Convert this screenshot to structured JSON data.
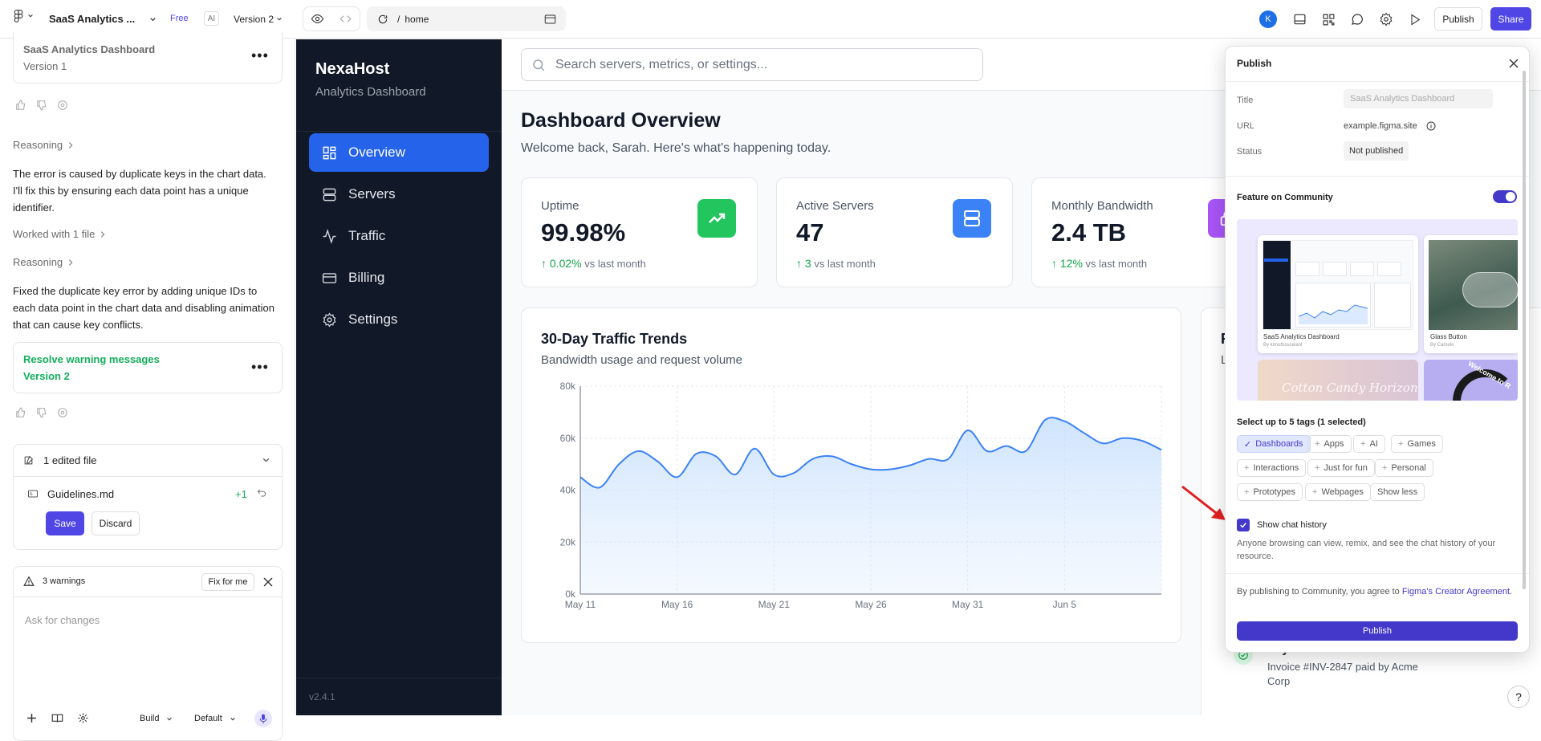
{
  "topbar": {
    "project_name": "SaaS Analytics ...",
    "plan_badge": "Free",
    "ai_badge": "AI",
    "version": "Version 2",
    "url_path": "/",
    "url_page": "home",
    "avatar_letter": "K",
    "publish_label": "Publish",
    "share_label": "Share"
  },
  "chat": {
    "version_card": {
      "title": "SaaS Analytics Dashboard",
      "version": "Version 1"
    },
    "reasoning_1": "Reasoning",
    "message_1": "The error is caused by duplicate keys in the chart data. I'll fix this by ensuring each data point has a unique identifier.",
    "worked_with": "Worked with 1 file",
    "reasoning_2": "Reasoning",
    "message_2": "Fixed the duplicate key error by adding unique IDs to each data point in the chart data and disabling animation that can cause key conflicts.",
    "version_card_2": {
      "title": "Resolve warning messages",
      "version": "Version 2"
    },
    "edited_files": {
      "title": "1 edited file",
      "file_name": "Guidelines.md",
      "diff": "+1",
      "save_label": "Save",
      "discard_label": "Discard"
    },
    "warnings": {
      "count_label": "3 warnings",
      "fix_label": "Fix for me"
    },
    "input_placeholder": "Ask for changes",
    "mode_select": "Build",
    "model_select": "Default"
  },
  "app": {
    "brand": "NexaHost",
    "brand_sub": "Analytics Dashboard",
    "nav": [
      {
        "label": "Overview",
        "icon": "grid-icon"
      },
      {
        "label": "Servers",
        "icon": "server-icon"
      },
      {
        "label": "Traffic",
        "icon": "activity-icon"
      },
      {
        "label": "Billing",
        "icon": "credit-card-icon"
      },
      {
        "label": "Settings",
        "icon": "gear-icon"
      }
    ],
    "version": "v2.4.1",
    "search_placeholder": "Search servers, metrics, or settings...",
    "page_title": "Dashboard Overview",
    "welcome": "Welcome back, Sarah. Here's what's happening today.",
    "stats": [
      {
        "label": "Uptime",
        "value": "99.98%",
        "change": "0.02%",
        "suffix": "vs last month",
        "color": "#22c55e"
      },
      {
        "label": "Active Servers",
        "value": "47",
        "change": "3",
        "suffix": "vs last month",
        "color": "#3b82f6"
      },
      {
        "label": "Monthly Bandwidth",
        "value": "2.4 TB",
        "change": "12%",
        "suffix": "vs last month",
        "color": "#a855f7"
      }
    ],
    "side_card": {
      "title_initial": "R",
      "subtitle_initial": "L"
    },
    "activity": {
      "title": "Payment received",
      "desc": "Invoice #INV-2847 paid by Acme Corp"
    }
  },
  "chart_data": {
    "type": "area",
    "title": "30-Day Traffic Trends",
    "subtitle": "Bandwidth usage and request volume",
    "xlabel": "",
    "ylabel": "",
    "ylim": [
      0,
      80000
    ],
    "y_ticks": [
      "0k",
      "20k",
      "40k",
      "60k",
      "80k"
    ],
    "x_ticks": [
      "May 11",
      "May 16",
      "May 21",
      "May 26",
      "May 31",
      "Jun 5"
    ],
    "grid": true,
    "series": [
      {
        "values": [
          45000,
          41000,
          50000,
          55000,
          51000,
          45000,
          54000,
          53000,
          46000,
          56000,
          46000,
          46500,
          52000,
          53000,
          50000,
          48000,
          48000,
          49500,
          52000,
          52000,
          63000,
          55000,
          57000,
          55000,
          67000,
          66500,
          62000,
          58000,
          60000,
          59000,
          55500
        ]
      }
    ]
  },
  "publish": {
    "header": "Publish",
    "title_label": "Title",
    "title_value": "SaaS Analytics Dashboard",
    "url_label": "URL",
    "url_value": "example.figma.site",
    "status_label": "Status",
    "status_value": "Not published",
    "feature_label": "Feature on Community",
    "preview_card_1": "SaaS Analytics Dashboard",
    "preview_card_1_by": "By kimothoscelanl",
    "preview_card_2": "Glass Button",
    "preview_card_2_by": "By Camelo",
    "preview_card_3": "Cotton Candy Horizon",
    "preview_card_4": "Welcome to R",
    "tags_label": "Select up to 5 tags (1 selected)",
    "tags": [
      {
        "label": "Dashboards",
        "selected": true
      },
      {
        "label": "Apps",
        "selected": false
      },
      {
        "label": "AI",
        "selected": false
      },
      {
        "label": "Games",
        "selected": false
      },
      {
        "label": "Interactions",
        "selected": false
      },
      {
        "label": "Just for fun",
        "selected": false
      },
      {
        "label": "Personal",
        "selected": false
      },
      {
        "label": "Prototypes",
        "selected": false
      },
      {
        "label": "Webpages",
        "selected": false
      },
      {
        "label": "Show less",
        "selected": false
      }
    ],
    "chat_history_label": "Show chat history",
    "chat_history_desc": "Anyone browsing can view, remix, and see the chat history of your resource.",
    "agreement_prefix": "By publishing to Community, you agree to",
    "agreement_link": "Figma's Creator Agreement",
    "agreement_suffix": ".",
    "publish_button": "Publish",
    "accent": "#4338ca"
  },
  "help_label": "?"
}
